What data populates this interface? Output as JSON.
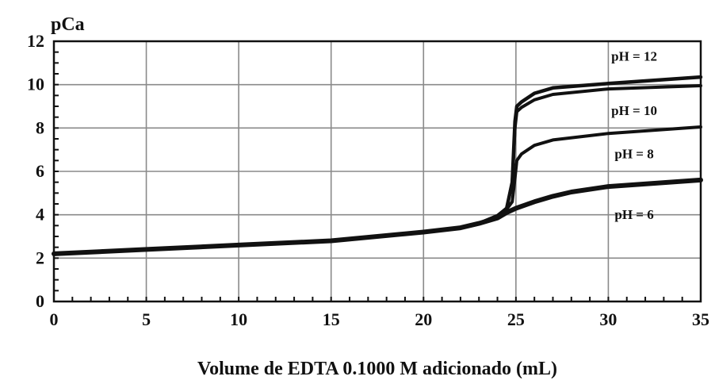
{
  "chart_data": {
    "type": "line",
    "ylabel": "pCa",
    "xlabel": "Volume de EDTA 0.1000 M adicionado (mL)",
    "xlim": [
      0,
      35
    ],
    "ylim": [
      0,
      12
    ],
    "xticks": [
      0,
      5,
      10,
      15,
      20,
      25,
      30,
      35
    ],
    "yticks": [
      0,
      2,
      4,
      6,
      8,
      10,
      12
    ],
    "grid": true,
    "series": [
      {
        "name": "pH = 12",
        "x": [
          0,
          5,
          10,
          15,
          20,
          22,
          23,
          24,
          24.5,
          24.8,
          24.95,
          25.05,
          25.3,
          26,
          27,
          30,
          35
        ],
        "y": [
          2.2,
          2.4,
          2.6,
          2.8,
          3.2,
          3.4,
          3.6,
          3.95,
          4.3,
          5.5,
          8.3,
          9.0,
          9.2,
          9.6,
          9.85,
          10.05,
          10.35
        ]
      },
      {
        "name": "pH = 10",
        "x": [
          0,
          5,
          10,
          15,
          20,
          22,
          23,
          24,
          24.5,
          24.8,
          24.95,
          25.05,
          25.3,
          26,
          27,
          30,
          35
        ],
        "y": [
          2.2,
          2.4,
          2.6,
          2.8,
          3.2,
          3.4,
          3.6,
          3.95,
          4.3,
          5.5,
          8.0,
          8.75,
          8.95,
          9.3,
          9.55,
          9.8,
          9.95
        ]
      },
      {
        "name": "pH = 8",
        "x": [
          0,
          5,
          10,
          15,
          20,
          22,
          23,
          24,
          24.5,
          24.8,
          24.95,
          25.05,
          25.3,
          26,
          27,
          30,
          35
        ],
        "y": [
          2.2,
          2.4,
          2.6,
          2.8,
          3.2,
          3.4,
          3.6,
          3.95,
          4.25,
          4.6,
          5.7,
          6.5,
          6.8,
          7.2,
          7.45,
          7.75,
          8.05
        ]
      },
      {
        "name": "pH = 6",
        "x": [
          0,
          5,
          10,
          15,
          20,
          22,
          23,
          24,
          24.5,
          25,
          25.5,
          26,
          27,
          28,
          30,
          35
        ],
        "y": [
          2.2,
          2.4,
          2.6,
          2.8,
          3.2,
          3.4,
          3.6,
          3.85,
          4.1,
          4.3,
          4.45,
          4.6,
          4.85,
          5.05,
          5.3,
          5.6
        ]
      }
    ]
  }
}
